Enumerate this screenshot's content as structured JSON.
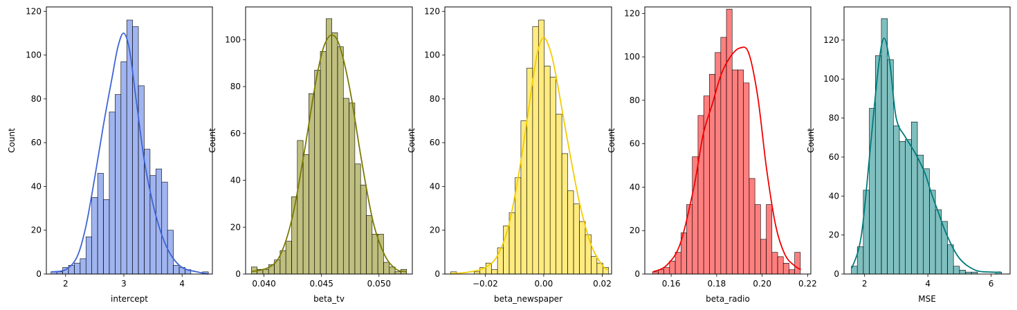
{
  "chart_data": [
    {
      "type": "histogram",
      "xlabel": "intercept",
      "ylabel": "Count",
      "color": "#4169e1",
      "kde": true,
      "xlim": [
        1.67,
        4.52
      ],
      "ylim": [
        0,
        122
      ],
      "xticks": [
        2,
        3,
        4
      ],
      "xtick_labels": [
        "2",
        "3",
        "4"
      ],
      "yticks": [
        0,
        20,
        40,
        60,
        80,
        100,
        120
      ],
      "bin_edges": [
        1.75,
        1.85,
        1.95,
        2.05,
        2.15,
        2.25,
        2.35,
        2.45,
        2.55,
        2.65,
        2.75,
        2.85,
        2.95,
        3.05,
        3.15,
        3.25,
        3.35,
        3.45,
        3.55,
        3.65,
        3.75,
        3.85,
        3.95,
        4.05,
        4.15,
        4.25,
        4.35,
        4.45
      ],
      "counts": [
        1,
        1,
        3,
        4,
        5,
        7,
        17,
        35,
        46,
        34,
        74,
        82,
        97,
        116,
        113,
        86,
        57,
        45,
        48,
        42,
        20,
        4,
        3,
        2,
        0,
        0,
        1
      ],
      "kde_x": [
        1.75,
        2.0,
        2.2,
        2.35,
        2.5,
        2.65,
        2.8,
        2.9,
        3.0,
        3.1,
        3.2,
        3.35,
        3.5,
        3.65,
        3.8,
        4.0,
        4.25,
        4.45
      ],
      "kde_y": [
        1,
        2,
        8,
        22,
        44,
        68,
        90,
        104,
        110,
        102,
        82,
        52,
        32,
        18,
        9,
        3,
        1,
        0
      ]
    },
    {
      "type": "histogram",
      "xlabel": "beta_tv",
      "ylabel": "Count",
      "color": "#808000",
      "kde": true,
      "xlim": [
        0.0384,
        0.0529
      ],
      "ylim": [
        0,
        114
      ],
      "xticks": [
        0.04,
        0.045,
        0.05
      ],
      "xtick_labels": [
        "0.040",
        "0.045",
        "0.050"
      ],
      "yticks": [
        0,
        20,
        40,
        60,
        80,
        100
      ],
      "bin_edges": [
        0.0389,
        0.0394,
        0.0399,
        0.0404,
        0.0409,
        0.0414,
        0.0419,
        0.0424,
        0.0429,
        0.0434,
        0.0439,
        0.0444,
        0.0449,
        0.0454,
        0.0459,
        0.0464,
        0.0469,
        0.0474,
        0.0479,
        0.0484,
        0.0489,
        0.0494,
        0.0499,
        0.0504,
        0.0509,
        0.0514,
        0.0519,
        0.0524
      ],
      "counts": [
        3,
        2,
        2,
        4,
        6,
        10,
        14,
        33,
        57,
        51,
        77,
        87,
        95,
        109,
        103,
        97,
        75,
        73,
        47,
        38,
        25,
        17,
        17,
        5,
        3,
        1,
        2
      ],
      "kde_x": [
        0.0389,
        0.0405,
        0.0415,
        0.0425,
        0.0435,
        0.0445,
        0.0452,
        0.0459,
        0.0466,
        0.0475,
        0.0485,
        0.0495,
        0.0505,
        0.0515,
        0.0524
      ],
      "kde_y": [
        1,
        3,
        9,
        25,
        52,
        82,
        97,
        102,
        97,
        78,
        48,
        22,
        8,
        2,
        1
      ]
    },
    {
      "type": "histogram",
      "xlabel": "beta_newspaper",
      "ylabel": "Count",
      "color": "#ffd700",
      "kde": true,
      "xlim": [
        -0.0338,
        0.0232
      ],
      "ylim": [
        0,
        122
      ],
      "xticks": [
        -0.02,
        0.0,
        0.02
      ],
      "xtick_labels": [
        "−0.02",
        "0.00",
        "0.02"
      ],
      "yticks": [
        0,
        20,
        40,
        60,
        80,
        100,
        120
      ],
      "bin_edges": [
        -0.0318,
        -0.0298,
        -0.0278,
        -0.0258,
        -0.0238,
        -0.0218,
        -0.0198,
        -0.0178,
        -0.0158,
        -0.0138,
        -0.0118,
        -0.0098,
        -0.0078,
        -0.0058,
        -0.0038,
        -0.0018,
        0.0002,
        0.0022,
        0.0042,
        0.0062,
        0.0082,
        0.0102,
        0.0122,
        0.0142,
        0.0162,
        0.0182,
        0.0202,
        0.0222
      ],
      "counts": [
        1,
        0,
        0,
        0,
        1,
        3,
        5,
        2,
        12,
        22,
        28,
        44,
        70,
        94,
        113,
        116,
        95,
        90,
        73,
        55,
        38,
        32,
        24,
        18,
        8,
        5,
        3
      ],
      "kde_x": [
        -0.032,
        -0.025,
        -0.02,
        -0.016,
        -0.012,
        -0.008,
        -0.004,
        -0.002,
        0.0,
        0.002,
        0.004,
        0.008,
        0.012,
        0.016,
        0.02,
        0.022
      ],
      "kde_y": [
        0,
        1,
        3,
        8,
        22,
        50,
        86,
        102,
        108,
        103,
        92,
        62,
        34,
        14,
        4,
        2
      ]
    },
    {
      "type": "histogram",
      "xlabel": "beta_radio",
      "ylabel": "Count",
      "color": "#ff0000",
      "kde": true,
      "xlim": [
        0.1484,
        0.2214
      ],
      "ylim": [
        0,
        123
      ],
      "xticks": [
        0.16,
        0.18,
        0.2,
        0.22
      ],
      "xtick_labels": [
        "0.16",
        "0.18",
        "0.20",
        "0.22"
      ],
      "yticks": [
        0,
        20,
        40,
        60,
        80,
        100,
        120
      ],
      "bin_edges": [
        0.1518,
        0.1543,
        0.1568,
        0.1593,
        0.1618,
        0.1643,
        0.1668,
        0.1693,
        0.1718,
        0.1743,
        0.1768,
        0.1793,
        0.1818,
        0.1843,
        0.1868,
        0.1893,
        0.1918,
        0.1943,
        0.1968,
        0.1993,
        0.2018,
        0.2043,
        0.2068,
        0.2093,
        0.2118,
        0.2143,
        0.2168
      ],
      "counts": [
        1,
        2,
        3,
        6,
        10,
        19,
        32,
        54,
        73,
        82,
        92,
        102,
        109,
        122,
        94,
        94,
        88,
        44,
        32,
        16,
        32,
        10,
        8,
        5,
        2,
        10
      ],
      "kde_x": [
        0.152,
        0.158,
        0.164,
        0.17,
        0.174,
        0.178,
        0.182,
        0.186,
        0.19,
        0.194,
        0.198,
        0.202,
        0.206,
        0.21,
        0.214,
        0.217
      ],
      "kde_y": [
        1,
        4,
        14,
        40,
        64,
        78,
        92,
        100,
        104,
        102,
        82,
        48,
        22,
        9,
        4,
        2
      ]
    },
    {
      "type": "histogram",
      "xlabel": "MSE",
      "ylabel": "Count",
      "color": "#008080",
      "kde": true,
      "xlim": [
        1.35,
        6.6
      ],
      "ylim": [
        0,
        137
      ],
      "xticks": [
        2,
        4,
        6
      ],
      "xtick_labels": [
        "2",
        "4",
        "6"
      ],
      "yticks": [
        0,
        20,
        40,
        60,
        80,
        100,
        120
      ],
      "bin_edges": [
        1.58,
        1.77,
        1.96,
        2.15,
        2.34,
        2.53,
        2.72,
        2.91,
        3.1,
        3.29,
        3.48,
        3.67,
        3.86,
        4.05,
        4.24,
        4.43,
        4.62,
        4.81,
        5.0,
        5.19,
        5.38,
        5.57,
        5.76,
        5.95,
        6.14,
        6.33
      ],
      "counts": [
        4,
        14,
        43,
        85,
        112,
        131,
        110,
        76,
        68,
        69,
        78,
        61,
        54,
        43,
        33,
        27,
        15,
        4,
        2,
        1,
        1,
        0,
        0,
        0,
        1
      ],
      "kde_x": [
        1.6,
        1.9,
        2.2,
        2.45,
        2.62,
        2.8,
        3.0,
        3.3,
        3.6,
        3.9,
        4.1,
        4.3,
        4.6,
        5.0,
        5.5,
        6.0,
        6.3
      ],
      "kde_y": [
        3,
        20,
        68,
        108,
        121,
        108,
        80,
        70,
        62,
        52,
        42,
        33,
        20,
        8,
        2,
        1,
        1
      ]
    }
  ]
}
